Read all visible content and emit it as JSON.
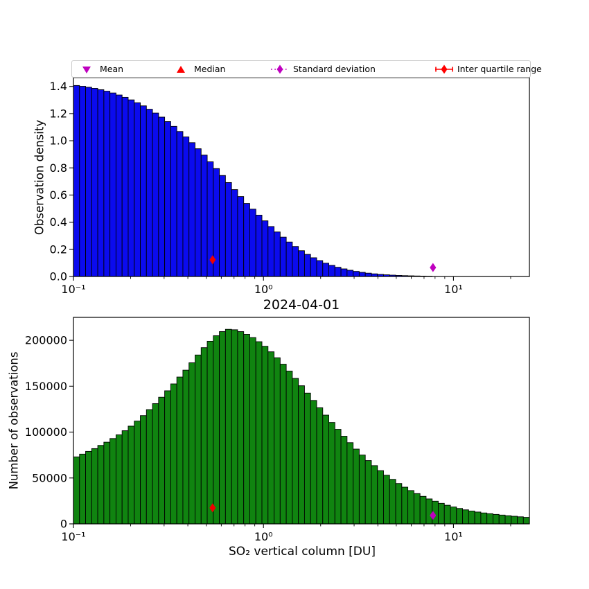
{
  "page": {
    "background": "#ffffff"
  },
  "legend": {
    "border_color": "#cccccc",
    "items": [
      {
        "label": "Mean",
        "marker": "triangle-down",
        "color": "#bf00bf",
        "linestyle": "none"
      },
      {
        "label": "Median",
        "marker": "triangle-up",
        "color": "#ff0000",
        "linestyle": "none"
      },
      {
        "label": "Standard deviation",
        "marker": "diamond",
        "color": "#bf00bf",
        "linestyle": "dotted"
      },
      {
        "label": "Inter quartile range",
        "marker": "diamond",
        "color": "#ff0000",
        "linestyle": "solid"
      }
    ]
  },
  "chart_data": [
    {
      "type": "bar",
      "name": "observation-density-histogram",
      "ylabel": "Observation density",
      "xlabel": "2024-04-01",
      "xscale": "log",
      "xlim": [
        0.1,
        25.1
      ],
      "ylim": [
        0,
        1.465
      ],
      "grid": false,
      "bar_color": "#0b0bee",
      "bar_edge_color": "#000000",
      "yticks": [
        {
          "label": "0.0",
          "value": 0.0
        },
        {
          "label": "0.2",
          "value": 0.2
        },
        {
          "label": "0.4",
          "value": 0.4
        },
        {
          "label": "0.6",
          "value": 0.6
        },
        {
          "label": "0.8",
          "value": 0.8
        },
        {
          "label": "1.0",
          "value": 1.0
        },
        {
          "label": "1.2",
          "value": 1.2
        },
        {
          "label": "1.4",
          "value": 1.4
        }
      ],
      "xticks": [
        {
          "label": "10⁻¹",
          "value": 0.1
        },
        {
          "label": "10⁰",
          "value": 1
        },
        {
          "label": "10¹",
          "value": 10
        }
      ],
      "bins": {
        "log10_start": -1,
        "log10_step": 0.032,
        "count": 75
      },
      "values": [
        1.407,
        1.401,
        1.394,
        1.386,
        1.376,
        1.365,
        1.352,
        1.337,
        1.32,
        1.301,
        1.28,
        1.257,
        1.232,
        1.204,
        1.174,
        1.141,
        1.106,
        1.068,
        1.028,
        0.986,
        0.941,
        0.894,
        0.845,
        0.795,
        0.744,
        0.692,
        0.64,
        0.589,
        0.538,
        0.496,
        0.452,
        0.41,
        0.368,
        0.328,
        0.29,
        0.254,
        0.221,
        0.19,
        0.163,
        0.138,
        0.117,
        0.098,
        0.082,
        0.068,
        0.056,
        0.046,
        0.0375,
        0.0305,
        0.0245,
        0.0195,
        0.0155,
        0.0125,
        0.01,
        0.0079,
        0.0062,
        0.0049,
        0.0038,
        0.0029,
        0.0022,
        0.0017,
        0.0013,
        0.001,
        0.0007,
        0.0005,
        0.0004,
        0.0003,
        0.0002,
        0.00015,
        0.0001,
        8e-05,
        6e-05,
        4e-05,
        3e-05,
        2e-05,
        1e-05
      ],
      "markers": [
        {
          "name": "inter-quartile-range-marker",
          "shape": "diamond",
          "color": "#ee0000",
          "x": 0.54,
          "y": 0.123
        },
        {
          "name": "standard-deviation-marker",
          "shape": "diamond",
          "color": "#bf00bf",
          "x": 7.8,
          "y": 0.066
        }
      ]
    },
    {
      "type": "bar",
      "name": "observation-count-histogram",
      "ylabel": "Number of observations",
      "xlabel": "SO₂ vertical column [DU]",
      "xscale": "log",
      "xlim": [
        0.1,
        25.1
      ],
      "ylim": [
        0,
        225000
      ],
      "grid": false,
      "bar_color": "#108410",
      "bar_edge_color": "#000000",
      "yticks": [
        {
          "label": "0",
          "value": 0
        },
        {
          "label": "50000",
          "value": 50000
        },
        {
          "label": "100000",
          "value": 100000
        },
        {
          "label": "150000",
          "value": 150000
        },
        {
          "label": "200000",
          "value": 200000
        }
      ],
      "xticks": [
        {
          "label": "10⁻¹",
          "value": 0.1
        },
        {
          "label": "10⁰",
          "value": 1
        },
        {
          "label": "10¹",
          "value": 10
        }
      ],
      "bins": {
        "log10_start": -1,
        "log10_step": 0.032,
        "count": 75
      },
      "values": [
        73000,
        76000,
        79000,
        82000,
        85500,
        89000,
        93000,
        97000,
        101500,
        106500,
        112000,
        118000,
        124500,
        131000,
        138000,
        145000,
        152500,
        160000,
        167500,
        175500,
        184000,
        192000,
        199000,
        205000,
        209500,
        212000,
        211500,
        209500,
        206500,
        203000,
        198500,
        193500,
        187500,
        181000,
        174000,
        166500,
        158500,
        150500,
        142500,
        134500,
        126500,
        118500,
        110500,
        103000,
        95500,
        88500,
        81500,
        75000,
        69000,
        63500,
        58000,
        53000,
        48500,
        44000,
        40000,
        36300,
        33000,
        30000,
        27200,
        24700,
        22400,
        20300,
        18400,
        16800,
        15300,
        14000,
        12900,
        11900,
        11100,
        10300,
        9600,
        8900,
        8300,
        7700,
        7100
      ],
      "markers": [
        {
          "name": "inter-quartile-range-marker",
          "shape": "diamond",
          "color": "#ee0000",
          "x": 0.54,
          "y": 17500
        },
        {
          "name": "standard-deviation-marker",
          "shape": "diamond",
          "color": "#bf00bf",
          "x": 7.8,
          "y": 9200
        }
      ]
    }
  ]
}
